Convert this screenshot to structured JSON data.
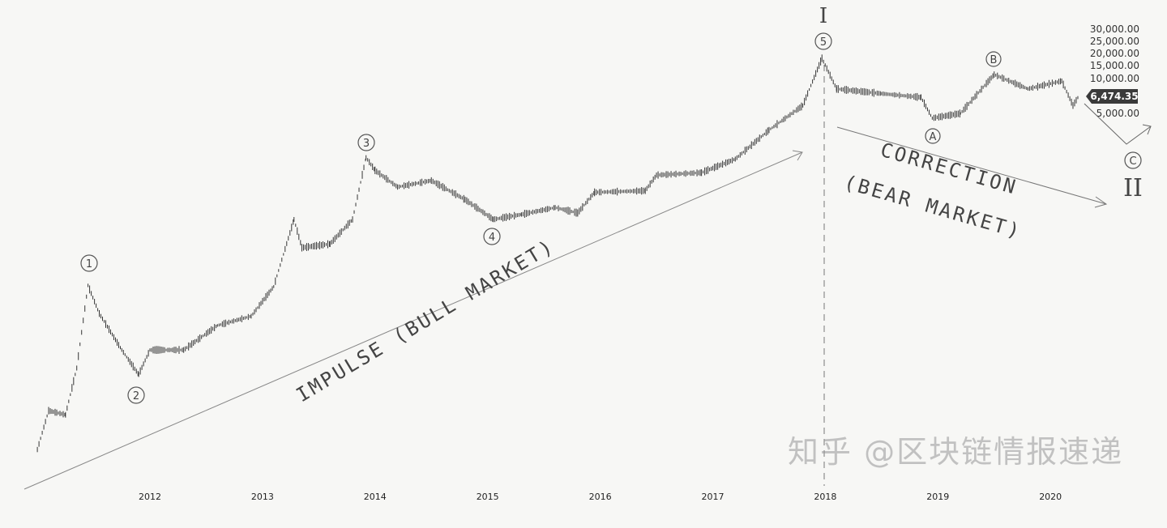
{
  "chart_data": {
    "type": "line",
    "title": "",
    "xlabel": "",
    "ylabel": "",
    "yscale": "log",
    "grid": false,
    "x_tick_labels": [
      "2012",
      "2013",
      "2014",
      "2015",
      "2016",
      "2017",
      "2018",
      "2019",
      "2020"
    ],
    "y_tick_labels": [
      "30,000.00",
      "25,000.00",
      "20,000.00",
      "15,000.00",
      "10,000.00",
      "5,000.00"
    ],
    "y_tick_values": [
      30000,
      25000,
      20000,
      15000,
      10000,
      5000
    ],
    "last_price_label": "6,474.35",
    "series": [
      {
        "x": [
          2011.0,
          2011.1,
          2011.25,
          2011.35,
          2011.45,
          2011.55,
          2011.75,
          2011.9,
          2012.0,
          2012.3,
          2012.6,
          2012.9,
          2013.1,
          2013.28,
          2013.35,
          2013.6,
          2013.8,
          2013.92,
          2014.0,
          2014.2,
          2014.5,
          2014.8,
          2015.05,
          2015.3,
          2015.6,
          2015.8,
          2015.95,
          2016.4,
          2016.5,
          2016.9,
          2017.2,
          2017.5,
          2017.8,
          2017.97,
          2018.1,
          2018.5,
          2018.85,
          2018.95,
          2019.2,
          2019.5,
          2019.8,
          2020.1,
          2020.2,
          2020.25
        ],
        "y": [
          0.3,
          0.9,
          0.8,
          3,
          31,
          14,
          5,
          2.5,
          5,
          5,
          10,
          13,
          30,
          200,
          90,
          100,
          200,
          1150,
          800,
          500,
          600,
          350,
          200,
          230,
          280,
          240,
          430,
          450,
          700,
          750,
          1100,
          2500,
          5000,
          19000,
          8000,
          7000,
          6300,
          3500,
          4000,
          12000,
          8000,
          10000,
          5000,
          6474
        ]
      }
    ],
    "annotations": {
      "wave_1": "1",
      "wave_2": "2",
      "wave_3": "3",
      "wave_4": "4",
      "wave_5": "5",
      "wave_a": "A",
      "wave_b": "B",
      "wave_c": "C",
      "degree_top": "I",
      "degree_bottom": "II",
      "impulse": "IMPULSE (BULL MARKET)",
      "correction": "CORRECTION",
      "bear": "(BEAR MARKET)"
    },
    "colors": {
      "line": "#333333",
      "price_tag": "#3a3a3a",
      "annotation": "#555555"
    }
  },
  "watermark": "知乎 @区块链情报速递"
}
